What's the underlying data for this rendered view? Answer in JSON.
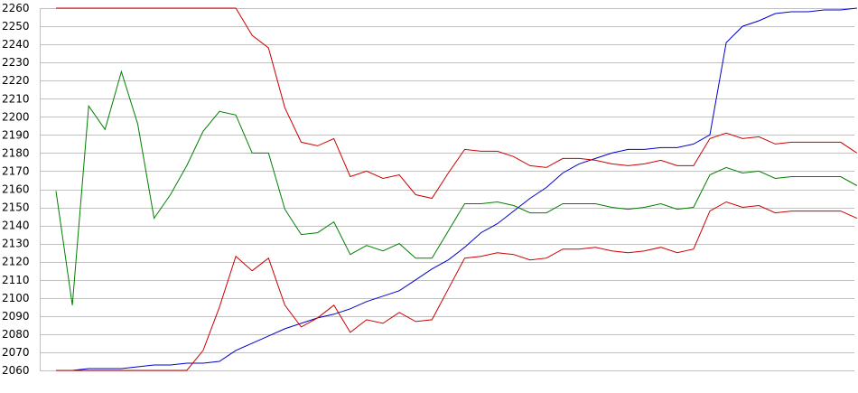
{
  "chart_data": {
    "type": "line",
    "title": "",
    "xlabel": "",
    "ylabel": "",
    "ylim": [
      2060,
      2260
    ],
    "y_ticks": [
      2060,
      2070,
      2080,
      2090,
      2100,
      2110,
      2120,
      2130,
      2140,
      2150,
      2160,
      2170,
      2180,
      2190,
      2200,
      2210,
      2220,
      2230,
      2240,
      2250,
      2260
    ],
    "grid": "horizontal",
    "legend": "none",
    "x": [
      1,
      2,
      3,
      4,
      5,
      6,
      7,
      8,
      9,
      10,
      11,
      12,
      13,
      14,
      15,
      16,
      17,
      18,
      19,
      20,
      21,
      22,
      23,
      24,
      25,
      26,
      27,
      28,
      29,
      30,
      31,
      32,
      33,
      34,
      35,
      36,
      37,
      38,
      39,
      40,
      41,
      42,
      43,
      44,
      45,
      46,
      47,
      48,
      49,
      50
    ],
    "series": [
      {
        "color": "#0000cc",
        "values": [
          2060,
          2060,
          2061,
          2061,
          2061,
          2062,
          2063,
          2063,
          2064,
          2064,
          2065,
          2071,
          2075,
          2079,
          2083,
          2086,
          2089,
          2091,
          2094,
          2098,
          2101,
          2104,
          2110,
          2116,
          2121,
          2128,
          2136,
          2141,
          2148,
          2155,
          2161,
          2169,
          2174,
          2177,
          2180,
          2182,
          2182,
          2183,
          2183,
          2185,
          2190,
          2241,
          2250,
          2253,
          2257,
          2258,
          2258,
          2259,
          2259,
          2260
        ]
      },
      {
        "color": "#cc0000",
        "values": [
          2260,
          2260,
          2260,
          2260,
          2260,
          2260,
          2260,
          2260,
          2260,
          2260,
          2260,
          2260,
          2245,
          2238,
          2205,
          2186,
          2184,
          2188,
          2167,
          2170,
          2166,
          2168,
          2157,
          2155,
          2169,
          2182,
          2181,
          2181,
          2178,
          2173,
          2172,
          2177,
          2177,
          2176,
          2174,
          2173,
          2174,
          2176,
          2173,
          2173,
          2188,
          2191,
          2188,
          2189,
          2185,
          2186,
          2186,
          2186,
          2186,
          2180
        ]
      },
      {
        "color": "#008000",
        "values": [
          2159,
          2096,
          2206,
          2193,
          2225,
          2196,
          2144,
          2157,
          2173,
          2192,
          2203,
          2201,
          2180,
          2180,
          2149,
          2135,
          2136,
          2142,
          2124,
          2129,
          2126,
          2130,
          2122,
          2122,
          2137,
          2152,
          2152,
          2153,
          2151,
          2147,
          2147,
          2152,
          2152,
          2152,
          2150,
          2149,
          2150,
          2152,
          2149,
          2150,
          2168,
          2172,
          2169,
          2170,
          2166,
          2167,
          2167,
          2167,
          2167,
          2162
        ]
      },
      {
        "color": "#cc0000",
        "values": [
          2060,
          2060,
          2060,
          2060,
          2060,
          2060,
          2060,
          2060,
          2060,
          2071,
          2095,
          2123,
          2115,
          2122,
          2096,
          2084,
          2089,
          2096,
          2081,
          2088,
          2086,
          2092,
          2087,
          2088,
          2105,
          2122,
          2123,
          2125,
          2124,
          2121,
          2122,
          2127,
          2127,
          2128,
          2126,
          2125,
          2126,
          2128,
          2125,
          2127,
          2148,
          2153,
          2150,
          2151,
          2147,
          2148,
          2148,
          2148,
          2148,
          2144
        ]
      }
    ]
  }
}
